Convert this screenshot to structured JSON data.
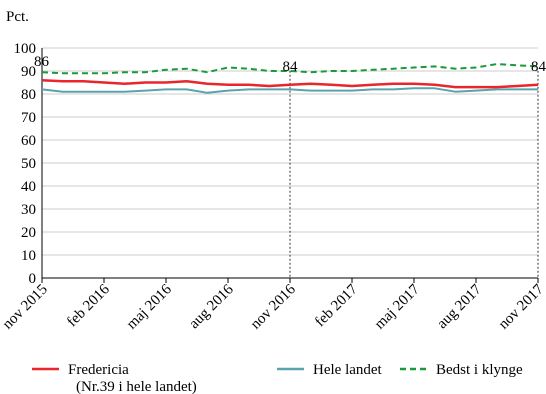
{
  "chart_data": {
    "type": "line",
    "ylabel": "Pct.",
    "ylim": [
      0,
      100
    ],
    "yticks": [
      0,
      10,
      20,
      30,
      40,
      50,
      60,
      70,
      80,
      90,
      100
    ],
    "x_tick_labels": [
      "nov 2015",
      "feb 2016",
      "maj 2016",
      "aug 2016",
      "nov 2016",
      "feb 2017",
      "maj 2017",
      "aug 2017",
      "nov 2017"
    ],
    "x_tick_months": [
      0,
      3,
      6,
      9,
      12,
      15,
      18,
      21,
      24
    ],
    "x_range_months": [
      0,
      24
    ],
    "grid": "horizontal",
    "colors": {
      "fredericia": "#e8262b",
      "hele": "#5aa3ad",
      "bedst": "#1a9a3a",
      "grid": "#cccccc",
      "axis": "#000000"
    },
    "series": [
      {
        "key": "fredericia",
        "name": "Fredericia",
        "name_note": "(Nr.39 i hele landet)",
        "style": "solid",
        "x": [
          0,
          1,
          2,
          3,
          4,
          5,
          6,
          7,
          8,
          9,
          10,
          11,
          12,
          13,
          14,
          15,
          16,
          17,
          18,
          19,
          20,
          21,
          22,
          23,
          24
        ],
        "values": [
          86,
          85.5,
          85.5,
          85,
          84.5,
          85,
          85,
          85.5,
          84.5,
          84,
          84,
          83.5,
          84,
          84.5,
          84,
          83.5,
          84,
          84.5,
          84.5,
          84,
          83,
          83,
          83,
          83.5,
          84
        ]
      },
      {
        "key": "hele",
        "name": "Hele landet",
        "style": "solid",
        "x": [
          0,
          1,
          2,
          3,
          4,
          5,
          6,
          7,
          8,
          9,
          10,
          11,
          12,
          13,
          14,
          15,
          16,
          17,
          18,
          19,
          20,
          21,
          22,
          23,
          24
        ],
        "values": [
          82,
          81,
          81,
          81,
          81,
          81.5,
          82,
          82,
          80.5,
          81.5,
          82,
          82,
          82,
          81.5,
          81.5,
          81.5,
          82,
          82,
          82.5,
          82.5,
          81,
          81.5,
          82,
          82,
          82
        ]
      },
      {
        "key": "bedst",
        "name": "Bedst i klynge",
        "style": "dashed",
        "x": [
          0,
          1,
          2,
          3,
          4,
          5,
          6,
          7,
          8,
          9,
          10,
          11,
          12,
          13,
          14,
          15,
          16,
          17,
          18,
          19,
          20,
          21,
          22,
          23,
          24
        ],
        "values": [
          89.5,
          89,
          89,
          89,
          89.5,
          89.5,
          90.5,
          91,
          89.5,
          91.5,
          91,
          90,
          90,
          89.5,
          90,
          90,
          90.5,
          91,
          91.5,
          92,
          91,
          91.5,
          93,
          92.5,
          92
        ]
      }
    ],
    "data_labels": [
      {
        "text": "86",
        "series": "fredericia",
        "month": 0
      },
      {
        "text": "84",
        "series": "fredericia",
        "month": 12
      },
      {
        "text": "84",
        "series": "fredericia",
        "month": 24
      }
    ],
    "marker_lines_months": [
      0,
      12,
      24
    ],
    "legend_position": "bottom"
  }
}
